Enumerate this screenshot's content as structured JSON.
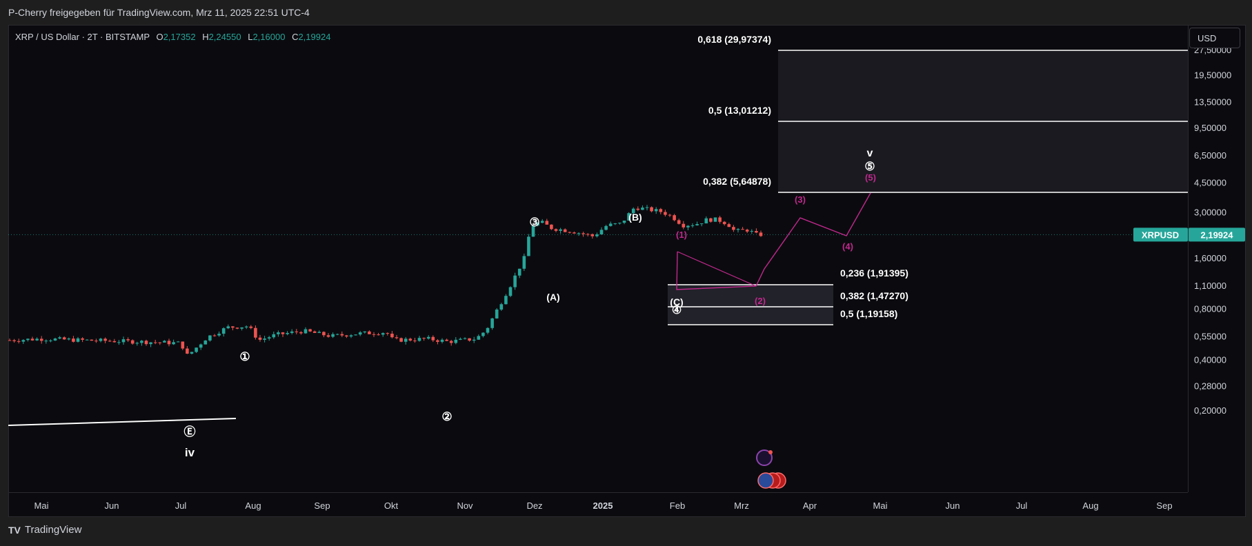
{
  "attribution": "P-Cherry freigegeben für TradingView.com, Mrz 11, 2025 22:51 UTC-4",
  "legend": {
    "symbol": "XRP / US Dollar · 2T · BITSTAMP",
    "o_label": "O",
    "o_value": "2,17352",
    "h_label": "H",
    "h_value": "2,24550",
    "l_label": "L",
    "l_value": "2,16000",
    "c_label": "C",
    "c_value": "2,19924"
  },
  "currency_button": "USD",
  "footer": {
    "brand": "TradingView"
  },
  "colors": {
    "up": "#26a69a",
    "down": "#ef5350",
    "magenta": "#c2288e",
    "white": "#ffffff",
    "price_badge": "#26a69a"
  },
  "chart_data": {
    "type": "candlestick",
    "y_scale": "log",
    "y_ticks": [
      "27,50000",
      "19,50000",
      "13,50000",
      "9,50000",
      "6,50000",
      "4,50000",
      "3,00000",
      "1,60000",
      "1,10000",
      "0,80000",
      "0,55000",
      "0,40000",
      "0,28000",
      "0,20000"
    ],
    "x_ticks": [
      "Mai",
      "Jun",
      "Jul",
      "Aug",
      "Sep",
      "Okt",
      "Nov",
      "Dez",
      "2025",
      "Feb",
      "Mrz",
      "Apr",
      "Mai",
      "Jun",
      "Jul",
      "Aug",
      "Sep"
    ],
    "price_badge": {
      "label": "XRPUSD",
      "value": "2,19924"
    },
    "fib_levels": [
      {
        "label": "0,618 (29,97374)"
      },
      {
        "label": "0,5 (13,01212)"
      },
      {
        "label": "0,382 (5,64878)"
      },
      {
        "label": "0,236 (1,91395)"
      },
      {
        "label": "0,382 (1,47270)"
      },
      {
        "label": "0,5 (1,19158)"
      }
    ],
    "wave_labels": {
      "w1": "①",
      "w2": "②",
      "w3": "③",
      "w4": "④",
      "w5": "⑤",
      "wE": "Ⓔ",
      "iv": "iv",
      "v": "v",
      "A": "(A)",
      "B": "(B)",
      "C": "(C)",
      "m1": "(1)",
      "m2": "(2)",
      "m3": "(3)",
      "m4": "(4)",
      "m5": "(5)"
    }
  }
}
